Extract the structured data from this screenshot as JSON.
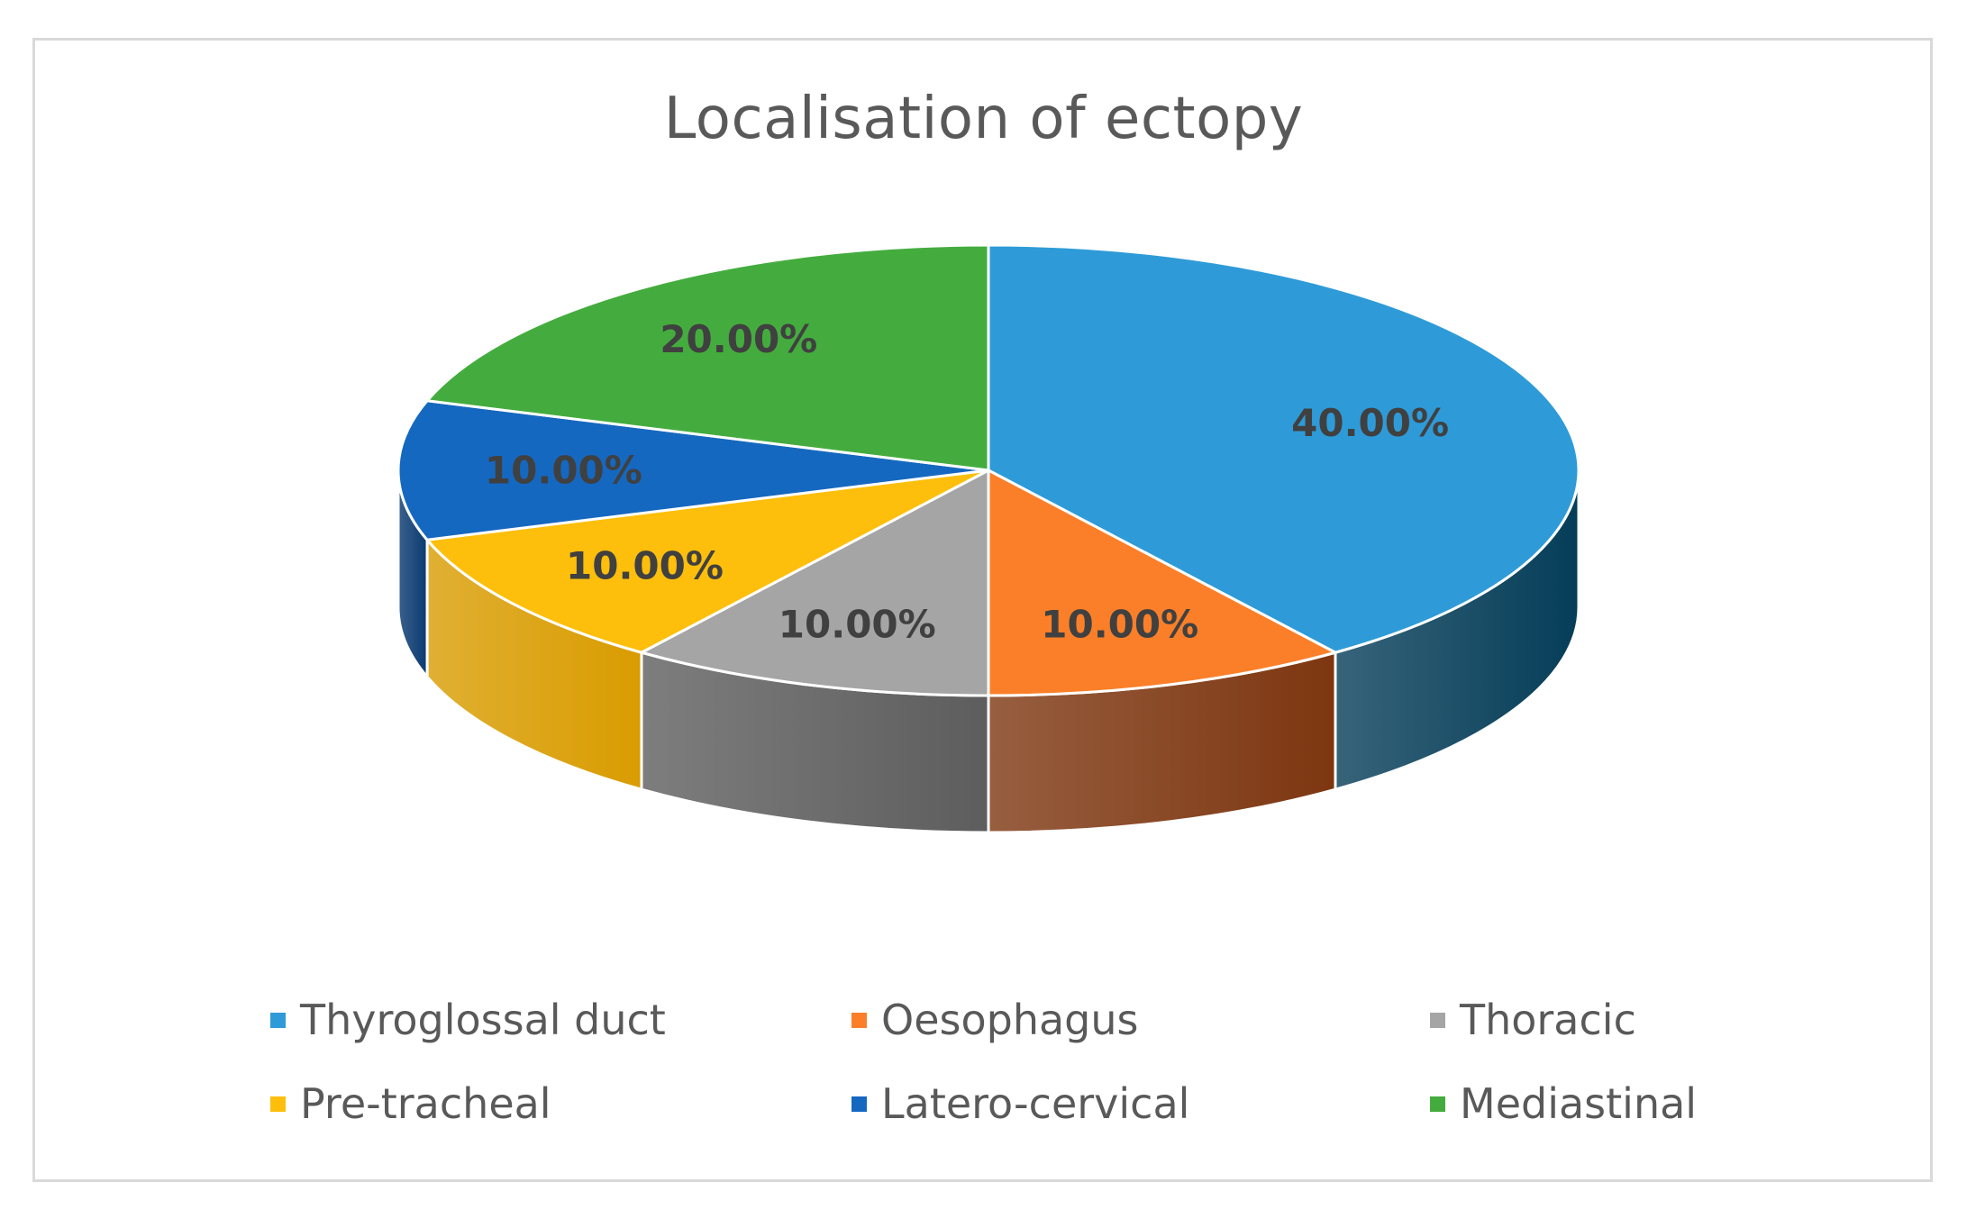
{
  "chart_data": {
    "type": "pie",
    "title": "Localisation of ectopy",
    "categories": [
      "Thyroglossal duct",
      "Oesophagus",
      "Thoracic",
      "Pre-tracheal",
      "Latero-cervical",
      "Mediastinal"
    ],
    "values": [
      40,
      10,
      10,
      10,
      10,
      20
    ],
    "data_labels": [
      "40.00%",
      "10.00%",
      "10.00%",
      "10.00%",
      "10.00%",
      "20.00%"
    ],
    "colors": [
      "#2e9bd8",
      "#fb7f29",
      "#a5a5a5",
      "#fdbf0c",
      "#1568c0",
      "#44ac3e"
    ],
    "side_colors": [
      "#053d58",
      "#7d3610",
      "#5d5d5d",
      "#d99c00",
      "#0a3a70",
      "#1f5e1c"
    ],
    "style": "3d",
    "legend_position": "bottom"
  }
}
